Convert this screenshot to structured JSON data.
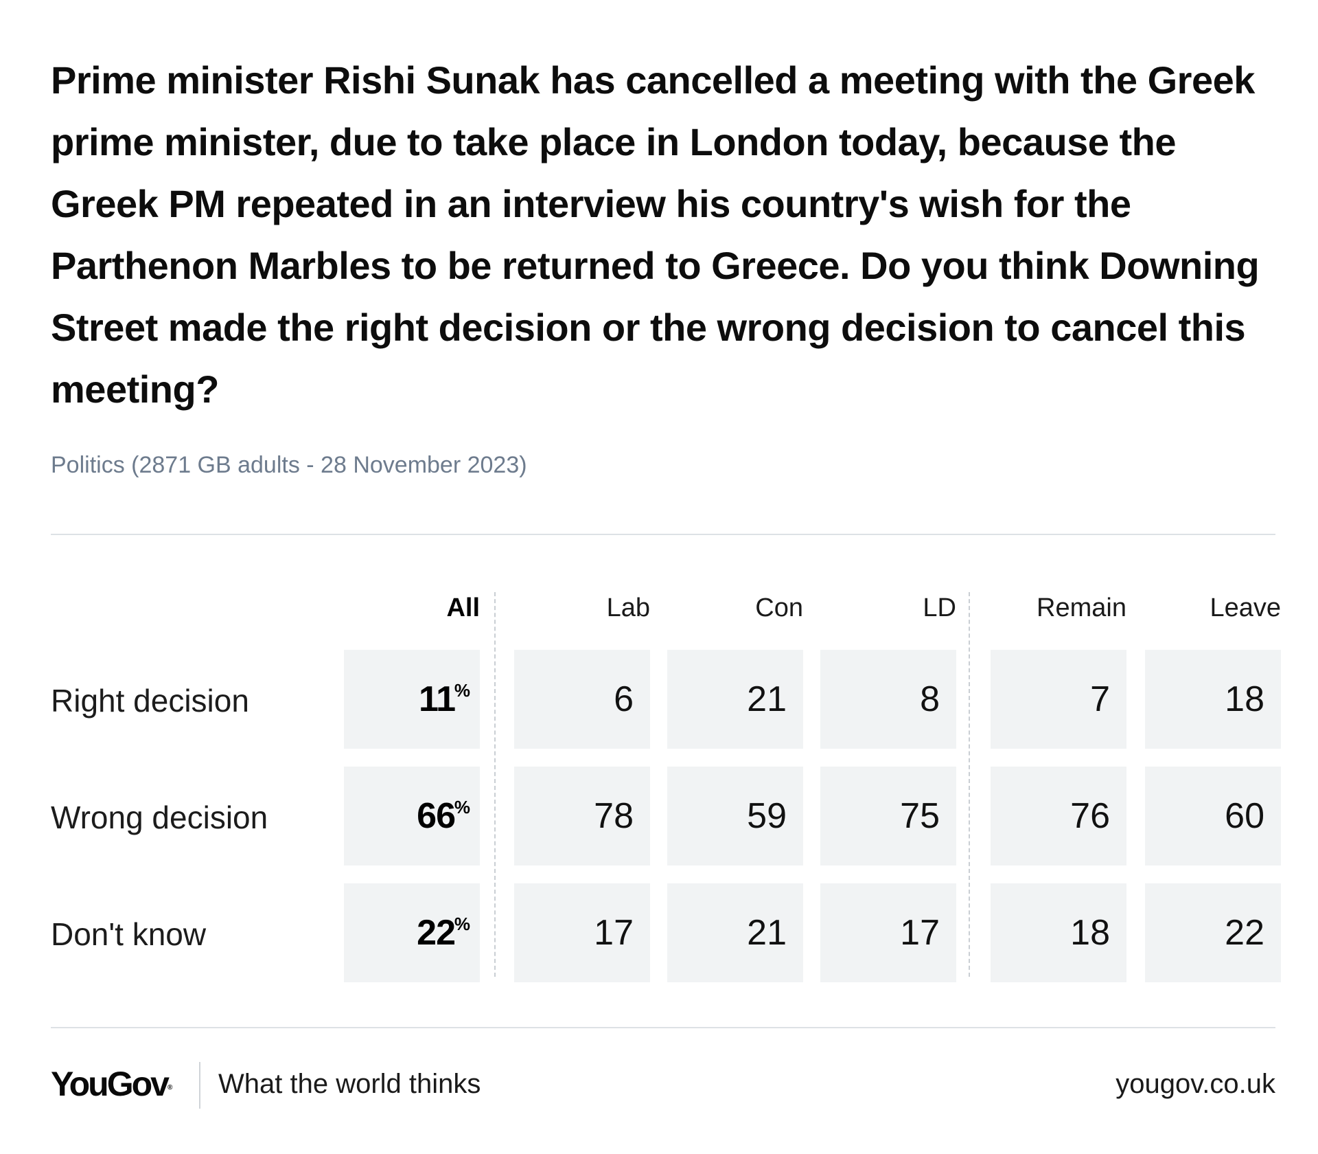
{
  "header": {
    "title": "Prime minister Rishi Sunak has cancelled a meeting with the Greek prime minister, due to take place in London today, because the Greek PM repeated in an interview his country's wish for the Parthenon Marbles to be returned to Greece. Do you think Downing Street made the right decision or the wrong decision to cancel this meeting?",
    "subtitle": "Politics (2871 GB adults - 28 November 2023)"
  },
  "chart_data": {
    "type": "table",
    "title": "Prime minister Rishi Sunak has cancelled a meeting with the Greek prime minister, due to take place in London today, because the Greek PM repeated in an interview his country's wish for the Parthenon Marbles to be returned to Greece. Do you think Downing Street made the right decision or the wrong decision to cancel this meeting?",
    "columns": [
      "All",
      "Lab",
      "Con",
      "LD",
      "Remain",
      "Leave"
    ],
    "rows": [
      {
        "label": "Right decision",
        "values": [
          11,
          6,
          21,
          8,
          7,
          18
        ]
      },
      {
        "label": "Wrong decision",
        "values": [
          66,
          78,
          59,
          75,
          76,
          60
        ]
      },
      {
        "label": "Don't know",
        "values": [
          22,
          17,
          21,
          17,
          18,
          22
        ]
      }
    ],
    "unit_symbol": "%",
    "cell_color": "#f1f3f4"
  },
  "footer": {
    "brand": "YouGov",
    "registered_mark": "®",
    "tagline": "What the world thinks",
    "url": "yougov.co.uk"
  },
  "colors": {
    "title": "#0d0d0d",
    "subtitle": "#6d7b8d",
    "rule": "#dde1e5"
  }
}
